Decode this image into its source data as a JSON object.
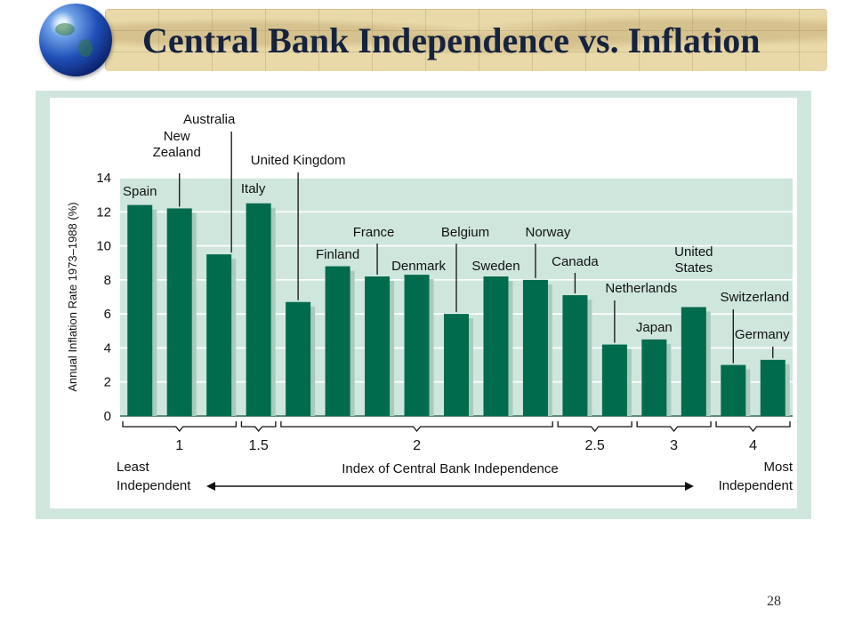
{
  "slide": {
    "title": "Central Bank Independence vs. Inflation",
    "page_number": "28"
  },
  "colors": {
    "bar": "#006b4d",
    "bar_shadow": "#a9cbbd",
    "plot_bg": "#cfe6dd",
    "gridline": "#ffffff",
    "title_text": "#16233f",
    "banner": "#e9d9a9"
  },
  "chart_data": {
    "type": "bar",
    "ylabel": "Annual Inflation Rate 1973–1988 (%)",
    "ylim": [
      0,
      14
    ],
    "yticks": [
      0,
      2,
      4,
      6,
      8,
      10,
      12,
      14
    ],
    "grid": true,
    "categories": [
      "Spain",
      "New Zealand",
      "Australia",
      "Italy",
      "United Kingdom",
      "Finland",
      "France",
      "Denmark",
      "Belgium",
      "Sweden",
      "Norway",
      "Canada",
      "Netherlands",
      "Japan",
      "United States",
      "Switzerland",
      "Germany"
    ],
    "values": [
      12.4,
      12.2,
      9.5,
      12.5,
      6.7,
      8.8,
      8.2,
      8.3,
      6.0,
      8.2,
      8.0,
      7.1,
      4.2,
      4.5,
      6.4,
      3.0,
      3.3
    ],
    "groups": [
      {
        "label": "1",
        "count": 3
      },
      {
        "label": "1.5",
        "count": 1
      },
      {
        "label": "2",
        "count": 7
      },
      {
        "label": "2.5",
        "count": 2
      },
      {
        "label": "3",
        "count": 2
      },
      {
        "label": "4",
        "count": 2
      }
    ],
    "xlabel": "Index of Central Bank Independence",
    "left_label": [
      "Least",
      "Independent"
    ],
    "right_label": [
      "Most",
      "Independent"
    ]
  }
}
